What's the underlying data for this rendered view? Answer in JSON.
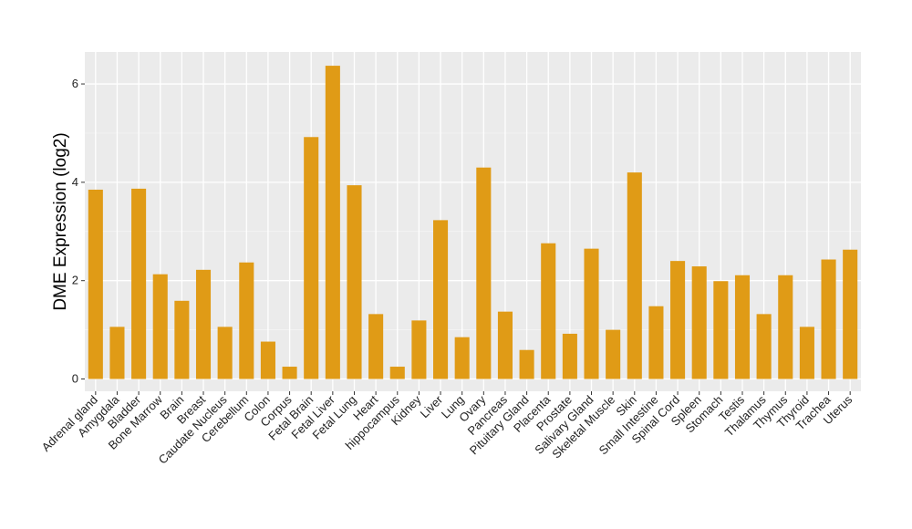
{
  "chart_data": {
    "type": "bar",
    "ylabel": "DME Expression (log2)",
    "xlabel": "",
    "ylim": [
      -0.25,
      6.65
    ],
    "yticks": [
      0,
      2,
      4,
      6
    ],
    "grid": true,
    "panel_color": "#ebebeb",
    "bar_color": "#e09b16",
    "categories": [
      "Adrenal gland",
      "Amygdala",
      "Bladder",
      "Bone Marrow",
      "Brain",
      "Breast",
      "Caudate Nucleus",
      "Cerebellum",
      "Colon",
      "Corpus",
      "Fetal Brain",
      "Fetal Liver",
      "Fetal Lung",
      "Heart",
      "hippocampus",
      "Kidney",
      "Liver",
      "Lung",
      "Ovary",
      "Pancreas",
      "Pituitary Gland",
      "Placenta",
      "Prostate",
      "Salivary Gland",
      "Skeletal Muscle",
      "Skin",
      "Small Intestine",
      "Spinal Cord",
      "Spleen",
      "Stomach",
      "Testis",
      "Thalamus",
      "Thymus",
      "Thyroid",
      "Trachea",
      "Uterus"
    ],
    "values": [
      3.85,
      1.06,
      3.87,
      2.13,
      1.59,
      2.22,
      1.06,
      2.37,
      0.76,
      0.25,
      4.92,
      6.37,
      3.94,
      1.32,
      0.25,
      1.19,
      3.23,
      0.85,
      4.3,
      1.37,
      0.59,
      2.76,
      0.92,
      2.65,
      1.0,
      4.2,
      1.48,
      2.4,
      2.29,
      1.99,
      2.11,
      1.32,
      2.11,
      1.06,
      2.43,
      2.63
    ]
  }
}
